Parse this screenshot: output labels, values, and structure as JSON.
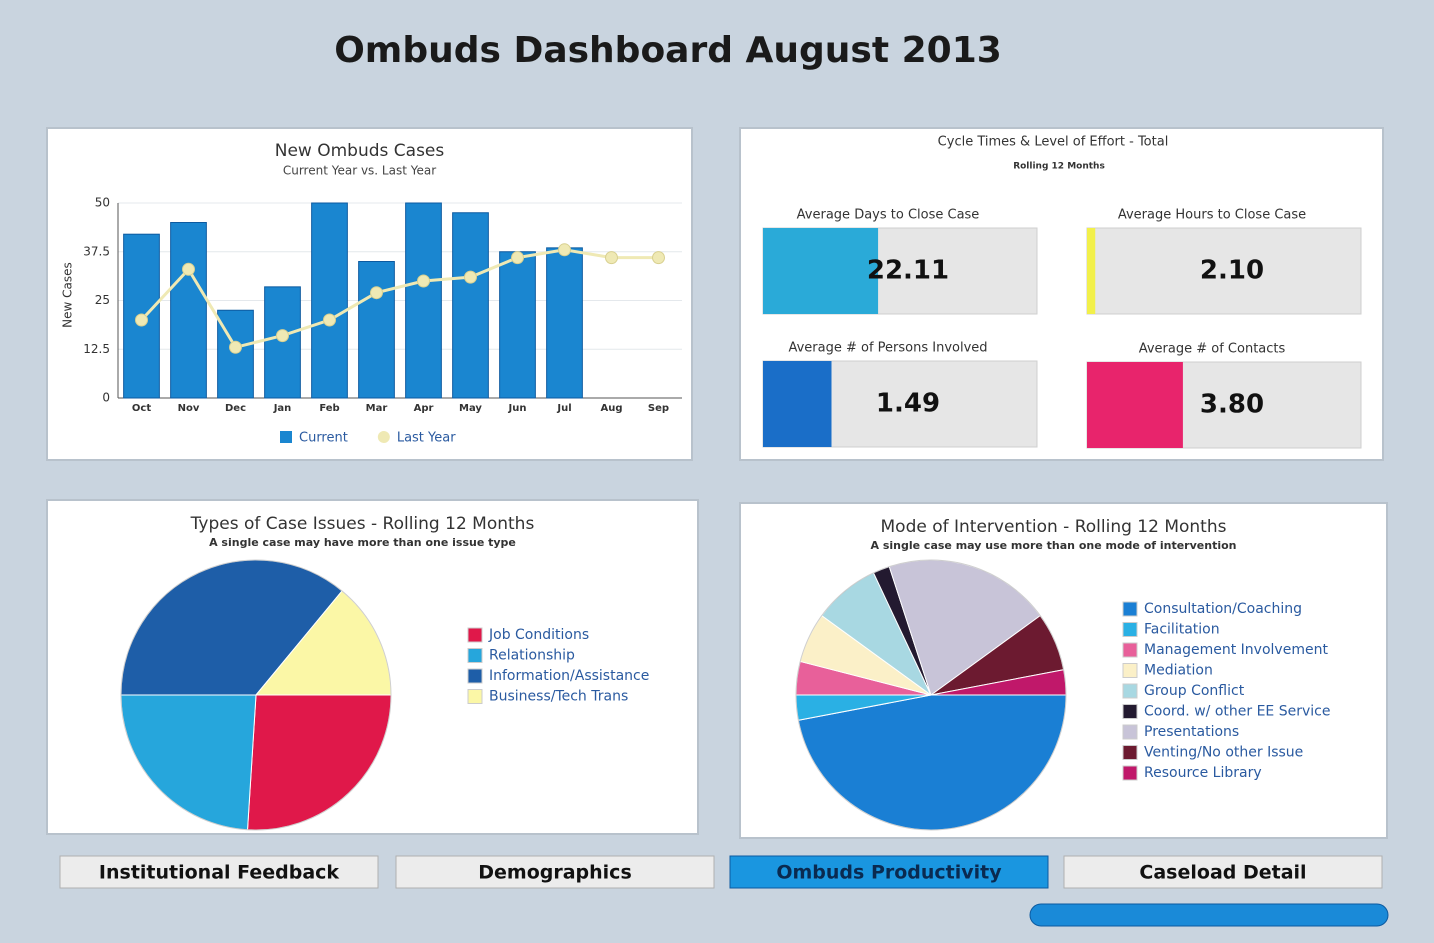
{
  "title": "Ombuds Dashboard August 2013",
  "chart_data": [
    {
      "type": "bar",
      "title": "New Ombuds Cases",
      "subtitle": "Current Year vs. Last Year",
      "y_label": "New Cases",
      "categories": [
        "Oct",
        "Nov",
        "Dec",
        "Jan",
        "Feb",
        "Mar",
        "Apr",
        "May",
        "Jun",
        "Jul",
        "Aug",
        "Sep"
      ],
      "ylim": [
        0,
        50
      ],
      "yticks": [
        0,
        12.5,
        25,
        37.5,
        50
      ],
      "series": [
        {
          "name": "Current",
          "color": "#1a86d0",
          "values": [
            42,
            45,
            22.5,
            28.5,
            50,
            35,
            50,
            47.5,
            37.5,
            38.5,
            null,
            null
          ]
        },
        {
          "name": "Last Year",
          "color": "#efe9b4",
          "values": [
            20,
            33,
            13,
            16,
            20,
            27,
            30,
            31,
            36,
            38,
            36,
            36
          ]
        }
      ]
    },
    {
      "type": "pie",
      "title": "Types of Case Issues - Rolling 12 Months",
      "subtitle": "A single case may have more than one issue type",
      "categories": [
        "Job Conditions",
        "Relationship",
        "Information/Assistance",
        "Business/Tech Trans"
      ],
      "values": [
        26,
        24,
        36,
        14
      ],
      "colors": [
        "#e0184a",
        "#26a6dc",
        "#1e5ea8",
        "#fbf7a6"
      ]
    },
    {
      "type": "pie",
      "title": "Mode of Intervention - Rolling 12 Months",
      "subtitle": "A single case may use more than one mode of intervention",
      "categories": [
        "Consultation/Coaching",
        "Facilitation",
        "Management Involvement",
        "Mediation",
        "Group Conflict",
        "Coord. w/ other EE Service",
        "Presentations",
        "Venting/No other Issue",
        "Resource Library"
      ],
      "values": [
        47,
        3,
        4,
        6,
        8,
        2,
        20,
        7,
        3
      ],
      "colors": [
        "#1a7fd4",
        "#2ab0e4",
        "#e8609a",
        "#fbf0c8",
        "#a8d8e2",
        "#231a30",
        "#c8c4d8",
        "#6c1a30",
        "#c0186a"
      ]
    }
  ],
  "gauge_panel": {
    "title": "Cycle Times & Level of Effort - Total",
    "subtitle": "Rolling 12 Months",
    "gauges": [
      {
        "label": "Average Days to Close Case",
        "value": "22.11",
        "level": 0.42,
        "color": "#2aaad8"
      },
      {
        "label": "Average Hours to Close Case",
        "value": "2.10",
        "level": 0.03,
        "color": "#f2f04a"
      },
      {
        "label": "Average # of Persons Involved",
        "value": "1.49",
        "level": 0.25,
        "color": "#1a6ec8"
      },
      {
        "label": "Average # of Contacts",
        "value": "3.80",
        "level": 0.35,
        "color": "#e8246c"
      }
    ]
  },
  "buttons": [
    "Institutional Feedback",
    "Demographics",
    "Ombuds Productivity",
    "Caseload Detail"
  ],
  "active_button": 2
}
